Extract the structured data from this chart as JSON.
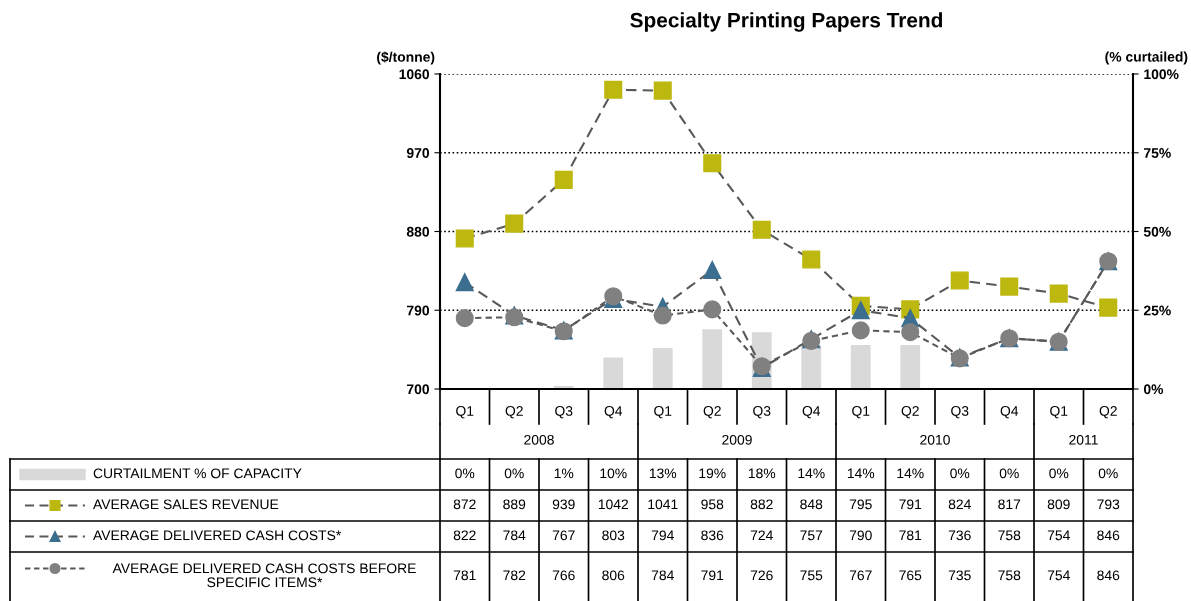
{
  "chart_data": {
    "type": "line",
    "title": "Specialty Printing Papers Trend",
    "ylabel": "($/tonne)",
    "y2label": "(% curtailed)",
    "categories": [
      "Q1",
      "Q2",
      "Q3",
      "Q4",
      "Q1",
      "Q2",
      "Q3",
      "Q4",
      "Q1",
      "Q2",
      "Q3",
      "Q4",
      "Q1",
      "Q2"
    ],
    "annotations": [
      "2008",
      "2009",
      "2010",
      "2011"
    ],
    "ylim": [
      700,
      1060
    ],
    "yticks": [
      700,
      790,
      880,
      970,
      1060
    ],
    "y2lim": [
      0,
      100
    ],
    "y2ticks": [
      {
        "value": 0,
        "label": "0%"
      },
      {
        "value": 25,
        "label": "25%"
      },
      {
        "value": 50,
        "label": "50%"
      },
      {
        "value": 75,
        "label": "75%"
      },
      {
        "value": 100,
        "label": "100%"
      }
    ],
    "grid": "y",
    "legend": "bottom",
    "data_labels": true,
    "series": [
      {
        "name": "CURTAILMENT % OF CAPACITY",
        "type": "bar",
        "axis": "y2",
        "color": "#d9d9d9",
        "values": [
          0,
          0,
          1,
          10,
          13,
          19,
          18,
          14,
          14,
          14,
          0,
          0,
          0,
          0
        ],
        "value_labels": [
          "0%",
          "0%",
          "1%",
          "10%",
          "13%",
          "19%",
          "18%",
          "14%",
          "14%",
          "14%",
          "0%",
          "0%",
          "0%",
          "0%"
        ]
      },
      {
        "name": "AVERAGE SALES REVENUE",
        "color": "#bdb80f",
        "marker": "square",
        "line_style": "dashed",
        "values": [
          872,
          889,
          939,
          1042,
          1041,
          958,
          882,
          848,
          795,
          791,
          824,
          817,
          809,
          793
        ]
      },
      {
        "name": "AVERAGE DELIVERED CASH COSTS*",
        "color": "#3b6e8f",
        "marker": "triangle",
        "line_style": "dashed",
        "values": [
          822,
          784,
          767,
          803,
          794,
          836,
          724,
          757,
          790,
          781,
          736,
          758,
          754,
          846
        ]
      },
      {
        "name": "AVERAGE DELIVERED CASH COSTS BEFORE SPECIFIC ITEMS*",
        "color": "#808080",
        "marker": "circle",
        "line_style": "dotted",
        "values": [
          781,
          782,
          766,
          806,
          784,
          791,
          726,
          755,
          767,
          765,
          735,
          758,
          754,
          846
        ]
      }
    ]
  }
}
